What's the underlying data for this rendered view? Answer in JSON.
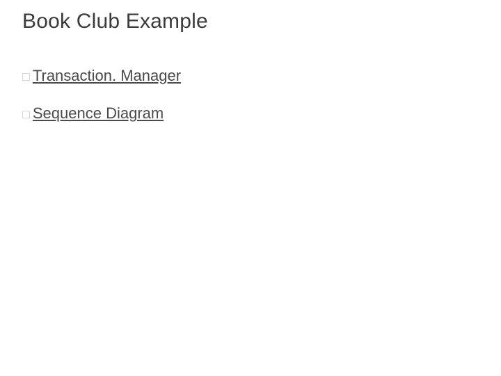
{
  "title": "Book Club Example",
  "title_color": "#3b3b3b",
  "title_fontsize": 30,
  "bullet_color": "#c9bcd6",
  "link_text_color": "#4a4a4a",
  "background_color": "#ffffff",
  "items": [
    {
      "label": "Transaction. Manager",
      "is_link": true
    },
    {
      "label": "Sequence Diagram",
      "is_link": true
    }
  ]
}
